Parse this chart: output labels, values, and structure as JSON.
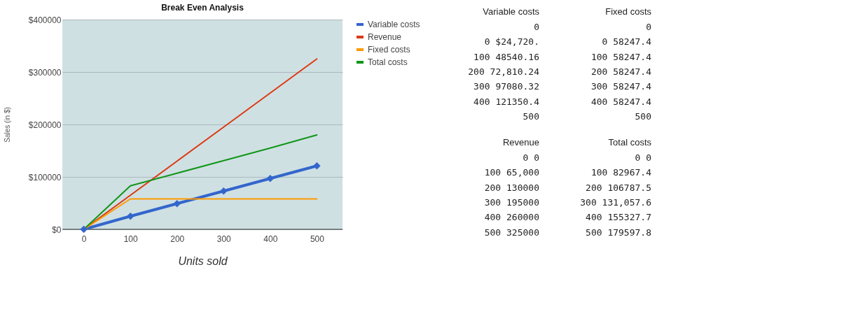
{
  "chart_data": [
    {
      "type": "line",
      "title": "Break Even Analysis",
      "xlabel": "Units sold",
      "ylabel": "Sales (in $)",
      "x": [
        0,
        100,
        200,
        300,
        400,
        500
      ],
      "series": [
        {
          "name": "Variable costs",
          "color": "#3366cc",
          "marker": "diamond",
          "values": [
            0,
            25000,
            49000,
            73000,
            97000,
            121000
          ]
        },
        {
          "name": "Revenue",
          "color": "#dc3912",
          "marker": "none",
          "values": [
            0,
            65000,
            130000,
            195000,
            260000,
            325000
          ]
        },
        {
          "name": "Fixed costs",
          "color": "#ff9900",
          "marker": "none",
          "values": [
            0,
            58000,
            58000,
            58000,
            58000,
            58000
          ]
        },
        {
          "name": "Total costs",
          "color": "#109618",
          "marker": "none",
          "values": [
            0,
            83000,
            107000,
            131000,
            155000,
            180000
          ]
        }
      ],
      "xlim": [
        -46,
        555
      ],
      "xticks": [
        0,
        100,
        200,
        300,
        400,
        500
      ],
      "ylim": [
        0,
        400000
      ],
      "yticks": [
        {
          "value": 0,
          "label": "$0"
        },
        {
          "value": 100000,
          "label": "$100000"
        },
        {
          "value": 200000,
          "label": "$200000"
        },
        {
          "value": 300000,
          "label": "$300000"
        },
        {
          "value": 400000,
          "label": "$400000"
        }
      ],
      "grid": "y",
      "legend": "right"
    },
    {
      "type": "other",
      "title": "Variable costs",
      "annotations": [
        "0",
        "0 $24,720.",
        "100 48540.16",
        "200 72,810.24",
        "300 97080.32",
        "400 121350.4",
        "500"
      ]
    },
    {
      "type": "other",
      "title": "Fixed costs",
      "annotations": [
        "0",
        "0 58247.4",
        "100 58247.4",
        "200 58247.4",
        "300 58247.4",
        "400 58247.4",
        "500"
      ]
    },
    {
      "type": "other",
      "title": "Revenue",
      "annotations": [
        "0 0",
        "100 65,000",
        "200 130000",
        "300 195000",
        "400 260000",
        "500 325000"
      ]
    },
    {
      "type": "other",
      "title": "Total costs",
      "annotations": [
        "0 0",
        "100 82967.4",
        "200 106787.5",
        "300 131,057.6",
        "400 155327.7",
        "500 179597.8"
      ]
    }
  ]
}
